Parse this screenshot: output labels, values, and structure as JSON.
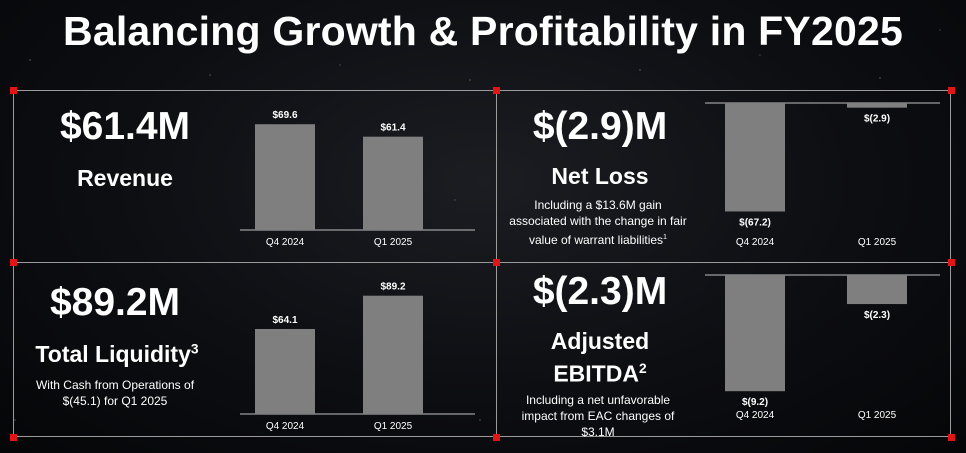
{
  "title": "Balancing Growth & Profitability in FY2025",
  "colors": {
    "bar": "#7f7f7f",
    "marker": "#e01616",
    "frame": "#9b9b9b"
  },
  "panels": [
    {
      "metric": "$61.4M",
      "label": "Revenue",
      "label_sup": "",
      "note": ""
    },
    {
      "metric": "$(2.9)M",
      "label": "Net Loss",
      "label_sup": "",
      "note": "Including a $13.6M gain associated with the change in fair value of warrant liabilities",
      "note_sup": "1"
    },
    {
      "metric": "$89.2M",
      "label": "Total Liquidity",
      "label_sup": "3",
      "note": "With Cash from Operations of $(45.1) for Q1 2025"
    },
    {
      "metric": "$(2.3)M",
      "label_line1": "Adjusted",
      "label_line2": "EBITDA",
      "label_sup": "2",
      "note": "Including a net unfavorable impact from EAC changes of $3.1M"
    }
  ],
  "chart_data": [
    {
      "type": "bar",
      "categories": [
        "Q4 2024",
        "Q1 2025"
      ],
      "values": [
        69.6,
        61.4
      ],
      "data_labels": [
        "$69.6",
        "$61.4"
      ],
      "ylim": [
        0,
        75
      ]
    },
    {
      "type": "bar",
      "categories": [
        "Q4 2024",
        "Q1 2025"
      ],
      "values": [
        -67.2,
        -2.9
      ],
      "data_labels": [
        "$(67.2)",
        "$(2.9)"
      ],
      "ylim": [
        -70,
        0
      ]
    },
    {
      "type": "bar",
      "categories": [
        "Q4 2024",
        "Q1 2025"
      ],
      "values": [
        64.1,
        89.2
      ],
      "data_labels": [
        "$64.1",
        "$89.2"
      ],
      "ylim": [
        0,
        95
      ]
    },
    {
      "type": "bar",
      "categories": [
        "Q4 2024",
        "Q1 2025"
      ],
      "values": [
        -9.2,
        -2.3
      ],
      "data_labels": [
        "$(9.2)",
        "$(2.3)"
      ],
      "ylim": [
        -9.5,
        0
      ]
    }
  ]
}
